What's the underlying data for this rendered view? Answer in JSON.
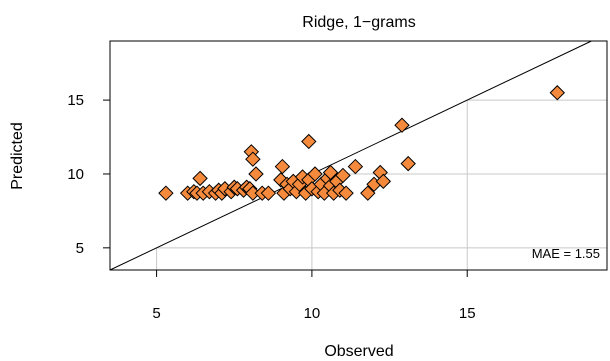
{
  "chart_data": {
    "type": "scatter",
    "title": "Ridge, 1−grams",
    "xlabel": "Observed",
    "ylabel": "Predicted",
    "xlim": [
      3.5,
      19.5
    ],
    "ylim": [
      3.5,
      19.0
    ],
    "xticks": [
      "5",
      "10",
      "15"
    ],
    "yticks": [
      "5",
      "10",
      "15"
    ],
    "xtick_values": [
      5,
      10,
      15
    ],
    "ytick_values": [
      5,
      10,
      15
    ],
    "reference_line": "y = x",
    "grid": "partial gridlines at 5, 10, 15 below the identity line",
    "annotation": "MAE = 1.55",
    "marker": "diamond",
    "marker_color": "#F58A3D",
    "marker_edge_color": "#000000",
    "points": [
      {
        "x": 5.3,
        "y": 8.7
      },
      {
        "x": 6.0,
        "y": 8.7
      },
      {
        "x": 6.2,
        "y": 8.8
      },
      {
        "x": 6.3,
        "y": 8.7
      },
      {
        "x": 6.4,
        "y": 9.7
      },
      {
        "x": 6.5,
        "y": 8.7
      },
      {
        "x": 6.7,
        "y": 8.8
      },
      {
        "x": 6.9,
        "y": 8.7
      },
      {
        "x": 7.0,
        "y": 8.9
      },
      {
        "x": 7.1,
        "y": 8.7
      },
      {
        "x": 7.2,
        "y": 9.0
      },
      {
        "x": 7.4,
        "y": 8.8
      },
      {
        "x": 7.5,
        "y": 9.1
      },
      {
        "x": 7.6,
        "y": 9.0
      },
      {
        "x": 7.8,
        "y": 8.9
      },
      {
        "x": 7.9,
        "y": 9.1
      },
      {
        "x": 8.0,
        "y": 9.0
      },
      {
        "x": 8.05,
        "y": 11.5
      },
      {
        "x": 8.1,
        "y": 11.0
      },
      {
        "x": 8.1,
        "y": 8.7
      },
      {
        "x": 8.2,
        "y": 10.0
      },
      {
        "x": 8.4,
        "y": 8.7
      },
      {
        "x": 8.6,
        "y": 8.7
      },
      {
        "x": 9.0,
        "y": 9.6
      },
      {
        "x": 9.05,
        "y": 10.5
      },
      {
        "x": 9.1,
        "y": 8.7
      },
      {
        "x": 9.2,
        "y": 9.3
      },
      {
        "x": 9.3,
        "y": 9.0
      },
      {
        "x": 9.4,
        "y": 9.5
      },
      {
        "x": 9.5,
        "y": 8.8
      },
      {
        "x": 9.6,
        "y": 9.3
      },
      {
        "x": 9.7,
        "y": 9.8
      },
      {
        "x": 9.8,
        "y": 8.7
      },
      {
        "x": 9.9,
        "y": 12.2
      },
      {
        "x": 9.9,
        "y": 9.6
      },
      {
        "x": 10.0,
        "y": 9.0
      },
      {
        "x": 10.1,
        "y": 10.0
      },
      {
        "x": 10.2,
        "y": 8.8
      },
      {
        "x": 10.3,
        "y": 9.3
      },
      {
        "x": 10.4,
        "y": 8.7
      },
      {
        "x": 10.5,
        "y": 9.7
      },
      {
        "x": 10.6,
        "y": 9.2
      },
      {
        "x": 10.6,
        "y": 10.1
      },
      {
        "x": 10.7,
        "y": 8.7
      },
      {
        "x": 10.8,
        "y": 9.5
      },
      {
        "x": 10.9,
        "y": 8.9
      },
      {
        "x": 11.0,
        "y": 9.9
      },
      {
        "x": 11.1,
        "y": 8.7
      },
      {
        "x": 11.4,
        "y": 10.5
      },
      {
        "x": 11.8,
        "y": 8.7
      },
      {
        "x": 12.0,
        "y": 9.3
      },
      {
        "x": 12.2,
        "y": 10.1
      },
      {
        "x": 12.3,
        "y": 9.5
      },
      {
        "x": 12.9,
        "y": 13.3
      },
      {
        "x": 13.1,
        "y": 10.7
      },
      {
        "x": 17.9,
        "y": 15.5
      }
    ]
  }
}
